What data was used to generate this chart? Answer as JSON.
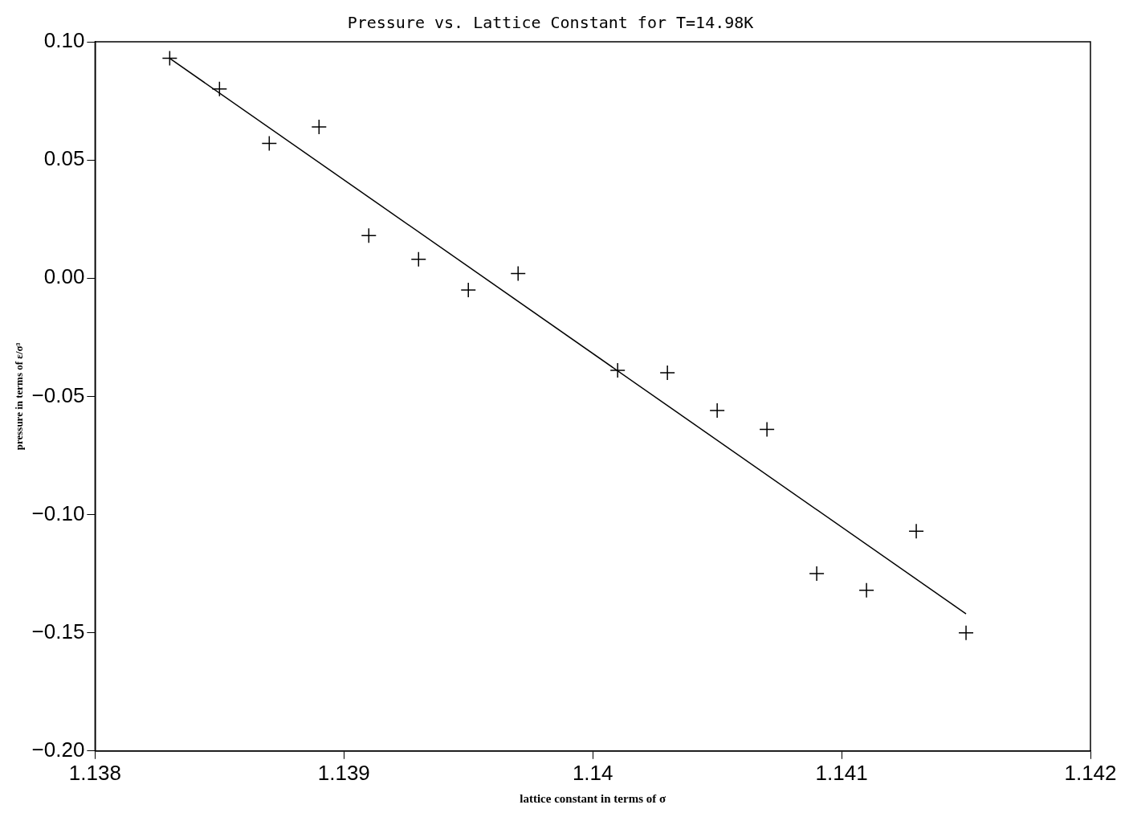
{
  "chart_data": {
    "type": "scatter",
    "title": "Pressure vs. Lattice Constant for T=14.98K",
    "xlabel": "lattice constant in terms of σ",
    "ylabel": "pressure in terms of ε/σ³",
    "xlim": [
      1.138,
      1.142
    ],
    "xticks": [
      1.138,
      1.139,
      1.14,
      1.141,
      1.142
    ],
    "ylim": [
      -0.2,
      0.1
    ],
    "yticks": [
      {
        "value": -0.2,
        "label": "−0.20"
      },
      {
        "value": -0.15,
        "label": "−0.15"
      },
      {
        "value": -0.1,
        "label": "−0.10"
      },
      {
        "value": -0.05,
        "label": "−0.05"
      },
      {
        "value": 0,
        "label": "0.00"
      },
      {
        "value": 0.05,
        "label": "0.05"
      },
      {
        "value": 0.1,
        "label": "0.10"
      }
    ],
    "grid": false,
    "legend": false,
    "series": [
      {
        "type": "scatter",
        "color": "#000000",
        "marker": "cross",
        "x": [
          1.1383,
          1.1385,
          1.1387,
          1.1389,
          1.1391,
          1.1393,
          1.1395,
          1.1397,
          1.1401,
          1.1403,
          1.1405,
          1.1407,
          1.1409,
          1.1411,
          1.1413,
          1.1415
        ],
        "values": [
          0.093,
          0.08,
          0.057,
          0.064,
          0.018,
          0.008,
          -0.005,
          0.002,
          -0.039,
          -0.04,
          -0.056,
          -0.064,
          -0.125,
          -0.132,
          -0.107,
          -0.15
        ]
      },
      {
        "type": "line",
        "color": "#000000",
        "marker": "none",
        "line_style": "solid",
        "x": [
          1.1383,
          1.1415
        ],
        "values": [
          0.093,
          -0.142
        ]
      }
    ]
  }
}
